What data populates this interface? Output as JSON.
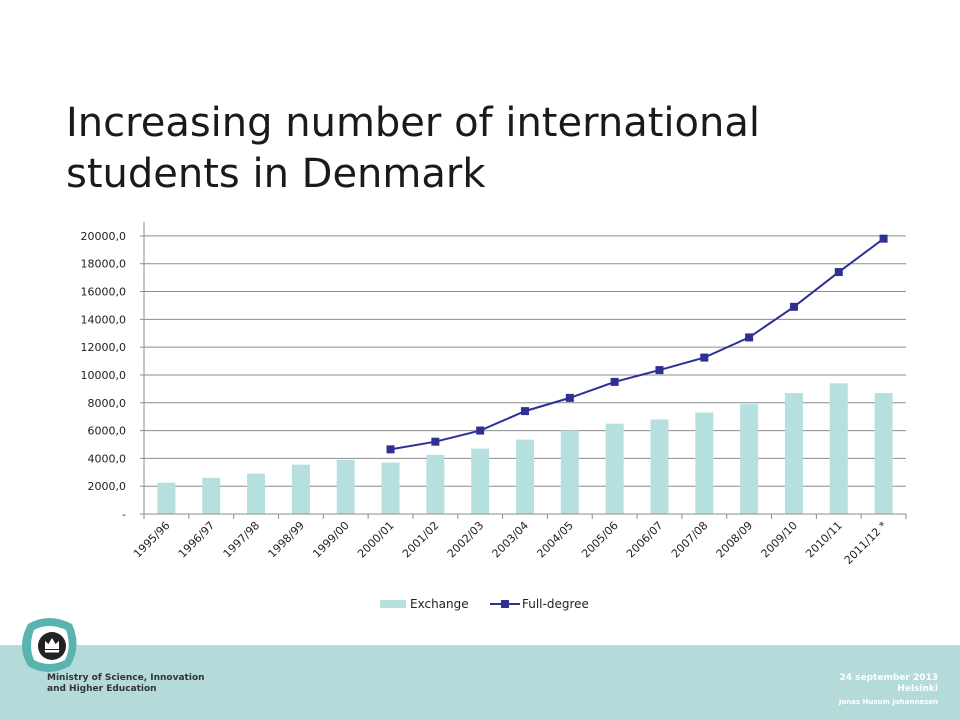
{
  "slide": {
    "title": "Increasing number of international students in Denmark"
  },
  "footer": {
    "ministry_line1": "Ministry of Science, Innovation",
    "ministry_line2": "and Higher Education",
    "date": "24 september 2013",
    "location": "Helsinki",
    "presenter": "Jonas Husum Johannesen"
  },
  "colors": {
    "exchange_bar": "#b6dfe0",
    "full_degree_line": "#2e3192",
    "footer_band": "#b4dad9",
    "logo_ring": "#5bb3b0"
  },
  "icons": {
    "logo": "crown-logo-icon"
  },
  "chart_data": {
    "type": "bar",
    "categories": [
      "1995/96",
      "1996/97",
      "1997/98",
      "1998/99",
      "1999/00",
      "2000/01",
      "2001/02",
      "2002/03",
      "2003/04",
      "2004/05",
      "2005/06",
      "2006/07",
      "2007/08",
      "2008/09",
      "2009/10",
      "2010/11",
      "2011/12 *"
    ],
    "series": [
      {
        "name": "Exchange",
        "type": "bar",
        "values": [
          2250,
          2600,
          2900,
          3550,
          3900,
          3700,
          4250,
          4700,
          5350,
          6000,
          6500,
          6800,
          7300,
          7900,
          8700,
          9400,
          8700
        ]
      },
      {
        "name": "Full-degree",
        "type": "line",
        "values": [
          null,
          null,
          null,
          null,
          null,
          4650,
          5200,
          6000,
          7400,
          8350,
          9500,
          10350,
          11250,
          12700,
          14900,
          17400,
          19800
        ]
      }
    ],
    "yticks": [
      "-",
      "2000,0",
      "4000,0",
      "6000,0",
      "8000,0",
      "10000,0",
      "12000,0",
      "14000,0",
      "16000,0",
      "18000,0",
      "20000,0"
    ],
    "ylim": [
      0,
      21000
    ],
    "grid": true,
    "legend": "bottom"
  }
}
